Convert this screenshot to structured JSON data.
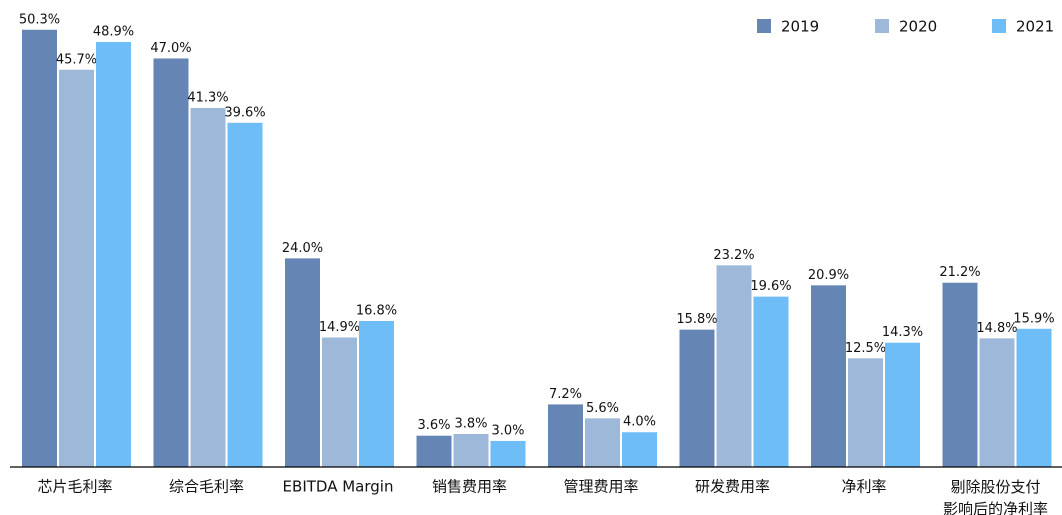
{
  "chart_data": {
    "type": "bar",
    "categories": [
      "芯片毛利率",
      "综合毛利率",
      "EBITDA Margin",
      "销售费用率",
      "管理费用率",
      "研发费用率",
      "净利率",
      "剔除股份支付影响后的净利率"
    ],
    "series": [
      {
        "name": "2019",
        "color": "#6585b4",
        "values": [
          50.3,
          47.0,
          24.0,
          3.6,
          7.2,
          15.8,
          20.9,
          21.2
        ],
        "value_labels": [
          "50.3%",
          "47.0%",
          "24.0%",
          "3.6%",
          "7.2%",
          "15.8%",
          "20.9%",
          "21.2%"
        ]
      },
      {
        "name": "2020",
        "color": "#9db8d8",
        "values": [
          45.7,
          41.3,
          14.9,
          3.8,
          5.6,
          23.2,
          12.5,
          14.8
        ],
        "value_labels": [
          "45.7%",
          "41.3%",
          "14.9%",
          "3.8%",
          "5.6%",
          "23.2%",
          "12.5%",
          "14.8%"
        ]
      },
      {
        "name": "2021",
        "color": "#6ebdf7",
        "values": [
          48.9,
          39.6,
          16.8,
          3.0,
          4.0,
          19.6,
          14.3,
          15.9
        ],
        "value_labels": [
          "48.9%",
          "39.6%",
          "16.8%",
          "3.0%",
          "4.0%",
          "19.6%",
          "14.3%",
          "15.9%"
        ]
      }
    ],
    "ylim": [
      0,
      52
    ],
    "legend": "top-right"
  }
}
